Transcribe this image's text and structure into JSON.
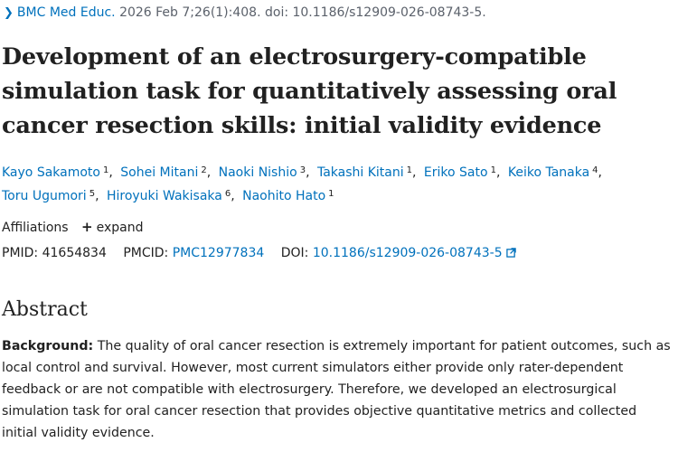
{
  "citation": {
    "journal": "BMC Med Educ.",
    "details": "2026 Feb 7;26(1):408. doi: 10.1186/s12909-026-08743-5."
  },
  "title": "Development of an electrosurgery-compatible simulation task for quantitatively assessing oral cancer resection skills: initial validity evidence",
  "authors": [
    {
      "name": "Kayo Sakamoto",
      "affil": "1"
    },
    {
      "name": "Sohei Mitani",
      "affil": "2"
    },
    {
      "name": "Naoki Nishio",
      "affil": "3"
    },
    {
      "name": "Takashi Kitani",
      "affil": "1"
    },
    {
      "name": "Eriko Sato",
      "affil": "1"
    },
    {
      "name": "Keiko Tanaka",
      "affil": "4"
    },
    {
      "name": "Toru Ugumori",
      "affil": "5"
    },
    {
      "name": "Hiroyuki Wakisaka",
      "affil": "6"
    },
    {
      "name": "Naohito Hato",
      "affil": "1"
    }
  ],
  "affiliations": {
    "label": "Affiliations",
    "expand_label": "expand"
  },
  "ids": {
    "pmid_label": "PMID:",
    "pmid": "41654834",
    "pmcid_label": "PMCID:",
    "pmcid": "PMC12977834",
    "doi_label": "DOI:",
    "doi": "10.1186/s12909-026-08743-5"
  },
  "abstract": {
    "heading": "Abstract",
    "background_label": "Background:",
    "background_text": "The quality of oral cancer resection is extremely important for patient outcomes, such as local control and survival. However, most current simulators either provide only rater-dependent feedback or are not compatible with electrosurgery. Therefore, we developed an electrosurgical simulation task for oral cancer resection that provides objective quantitative metrics and collected initial validity evidence."
  },
  "colors": {
    "link": "#0071bc",
    "text": "#212121",
    "muted": "#5b616b"
  },
  "icons": {
    "journal_chevron": "chevron-right-icon",
    "expand": "plus-icon",
    "doi_external": "external-link-icon"
  }
}
